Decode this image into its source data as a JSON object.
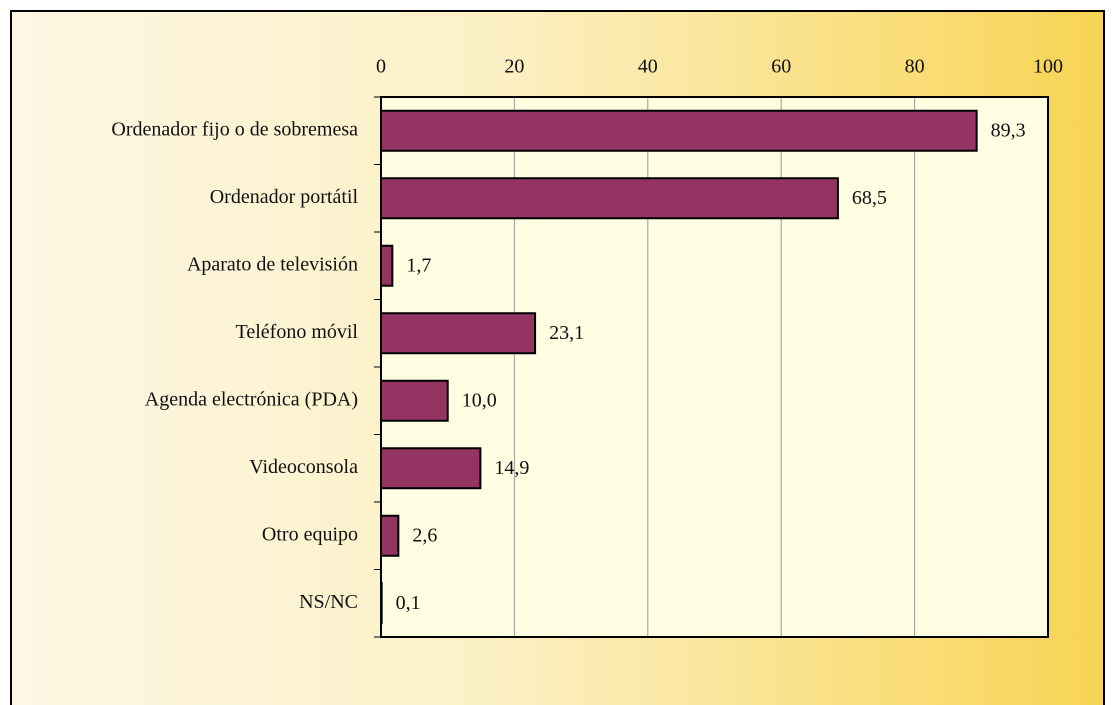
{
  "chart_data": {
    "type": "bar",
    "orientation": "horizontal",
    "categories": [
      "Ordenador fijo o de sobremesa",
      "Ordenador portátil",
      "Aparato de televisión",
      "Teléfono móvil",
      "Agenda electrónica (PDA)",
      "Videoconsola",
      "Otro equipo",
      "NS/NC"
    ],
    "values": [
      89.3,
      68.5,
      1.7,
      23.1,
      10.0,
      14.9,
      2.6,
      0.1
    ],
    "value_labels": [
      "89,3",
      "68,5",
      "1,7",
      "23,1",
      "10,0",
      "14,9",
      "2,6",
      "0,1"
    ],
    "color": "#943462",
    "xlim": [
      0,
      100
    ],
    "xticks": [
      0,
      20,
      40,
      60,
      80,
      100
    ],
    "grid": true
  }
}
